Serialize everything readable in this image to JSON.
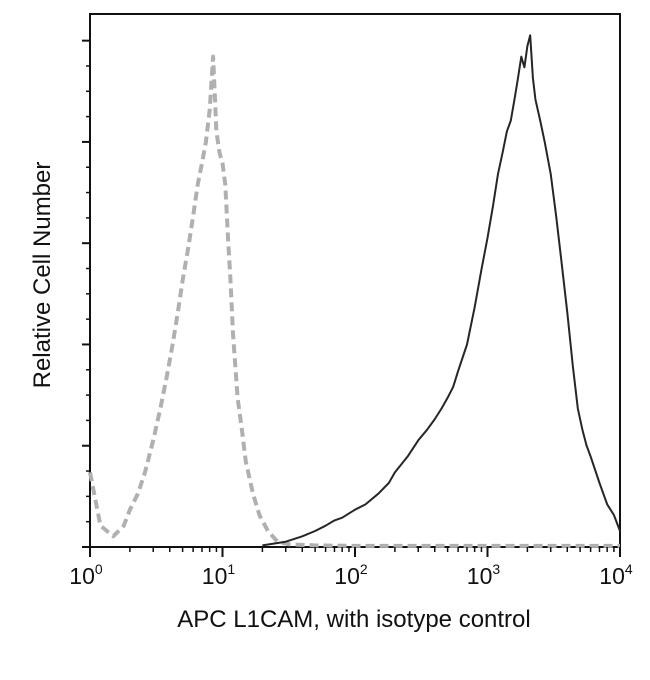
{
  "chart_data": {
    "type": "line",
    "title": "",
    "xlabel": "APC L1CAM, with isotype control",
    "ylabel": "Relative Cell Number",
    "x_scale": "log",
    "xlim": [
      1,
      10000
    ],
    "ylim": [
      0,
      100
    ],
    "x_ticks": [
      {
        "base": "10",
        "exp": "0"
      },
      {
        "base": "10",
        "exp": "1"
      },
      {
        "base": "10",
        "exp": "2"
      },
      {
        "base": "10",
        "exp": "3"
      },
      {
        "base": "10",
        "exp": "4"
      }
    ],
    "y_tick_values": [
      0,
      19,
      38,
      57,
      76,
      95
    ],
    "grid": false,
    "legend": "none",
    "series": [
      {
        "style": "dashed",
        "color": "#b0b0b0",
        "points": [
          [
            1.0,
            14
          ],
          [
            1.2,
            4
          ],
          [
            1.5,
            2
          ],
          [
            1.8,
            4
          ],
          [
            2.0,
            7
          ],
          [
            2.3,
            10
          ],
          [
            2.6,
            14
          ],
          [
            3.0,
            20
          ],
          [
            3.4,
            26
          ],
          [
            3.8,
            32
          ],
          [
            4.2,
            38
          ],
          [
            4.6,
            44
          ],
          [
            5.0,
            50
          ],
          [
            5.5,
            56
          ],
          [
            6.0,
            62
          ],
          [
            6.5,
            68
          ],
          [
            7.0,
            72
          ],
          [
            7.5,
            76
          ],
          [
            8.0,
            82
          ],
          [
            8.5,
            92
          ],
          [
            9.0,
            78
          ],
          [
            9.5,
            74
          ],
          [
            10.0,
            72
          ],
          [
            10.5,
            68
          ],
          [
            11.0,
            58
          ],
          [
            11.5,
            50
          ],
          [
            12.0,
            40
          ],
          [
            13.0,
            28
          ],
          [
            14.0,
            22
          ],
          [
            15.0,
            16
          ],
          [
            17.0,
            10
          ],
          [
            19.0,
            6
          ],
          [
            22.0,
            3
          ],
          [
            26.0,
            1
          ],
          [
            32.0,
            0.5
          ],
          [
            50.0,
            0.3
          ],
          [
            100.0,
            0.2
          ],
          [
            1000.0,
            0.2
          ],
          [
            10000.0,
            0.2
          ]
        ]
      },
      {
        "style": "solid",
        "color": "#262626",
        "points": [
          [
            20,
            0.3
          ],
          [
            30,
            1
          ],
          [
            40,
            2
          ],
          [
            50,
            3
          ],
          [
            60,
            4
          ],
          [
            70,
            5
          ],
          [
            80,
            5.5
          ],
          [
            100,
            7
          ],
          [
            120,
            8
          ],
          [
            150,
            10
          ],
          [
            180,
            12
          ],
          [
            200,
            14
          ],
          [
            250,
            17
          ],
          [
            300,
            20
          ],
          [
            350,
            22
          ],
          [
            400,
            24
          ],
          [
            450,
            26
          ],
          [
            500,
            28
          ],
          [
            550,
            30
          ],
          [
            600,
            33
          ],
          [
            700,
            38
          ],
          [
            800,
            45
          ],
          [
            900,
            52
          ],
          [
            1000,
            58
          ],
          [
            1100,
            64
          ],
          [
            1200,
            70
          ],
          [
            1300,
            74
          ],
          [
            1400,
            78
          ],
          [
            1500,
            80
          ],
          [
            1600,
            84
          ],
          [
            1700,
            88
          ],
          [
            1800,
            92
          ],
          [
            1900,
            90
          ],
          [
            2000,
            94
          ],
          [
            2100,
            96
          ],
          [
            2200,
            88
          ],
          [
            2300,
            84
          ],
          [
            2500,
            80
          ],
          [
            2700,
            76
          ],
          [
            3000,
            70
          ],
          [
            3300,
            62
          ],
          [
            3600,
            54
          ],
          [
            4000,
            44
          ],
          [
            4400,
            34
          ],
          [
            4800,
            26
          ],
          [
            5200,
            22
          ],
          [
            5600,
            19
          ],
          [
            6000,
            17
          ],
          [
            7000,
            12
          ],
          [
            8000,
            8
          ],
          [
            9000,
            6
          ],
          [
            10000,
            3
          ]
        ]
      }
    ]
  }
}
